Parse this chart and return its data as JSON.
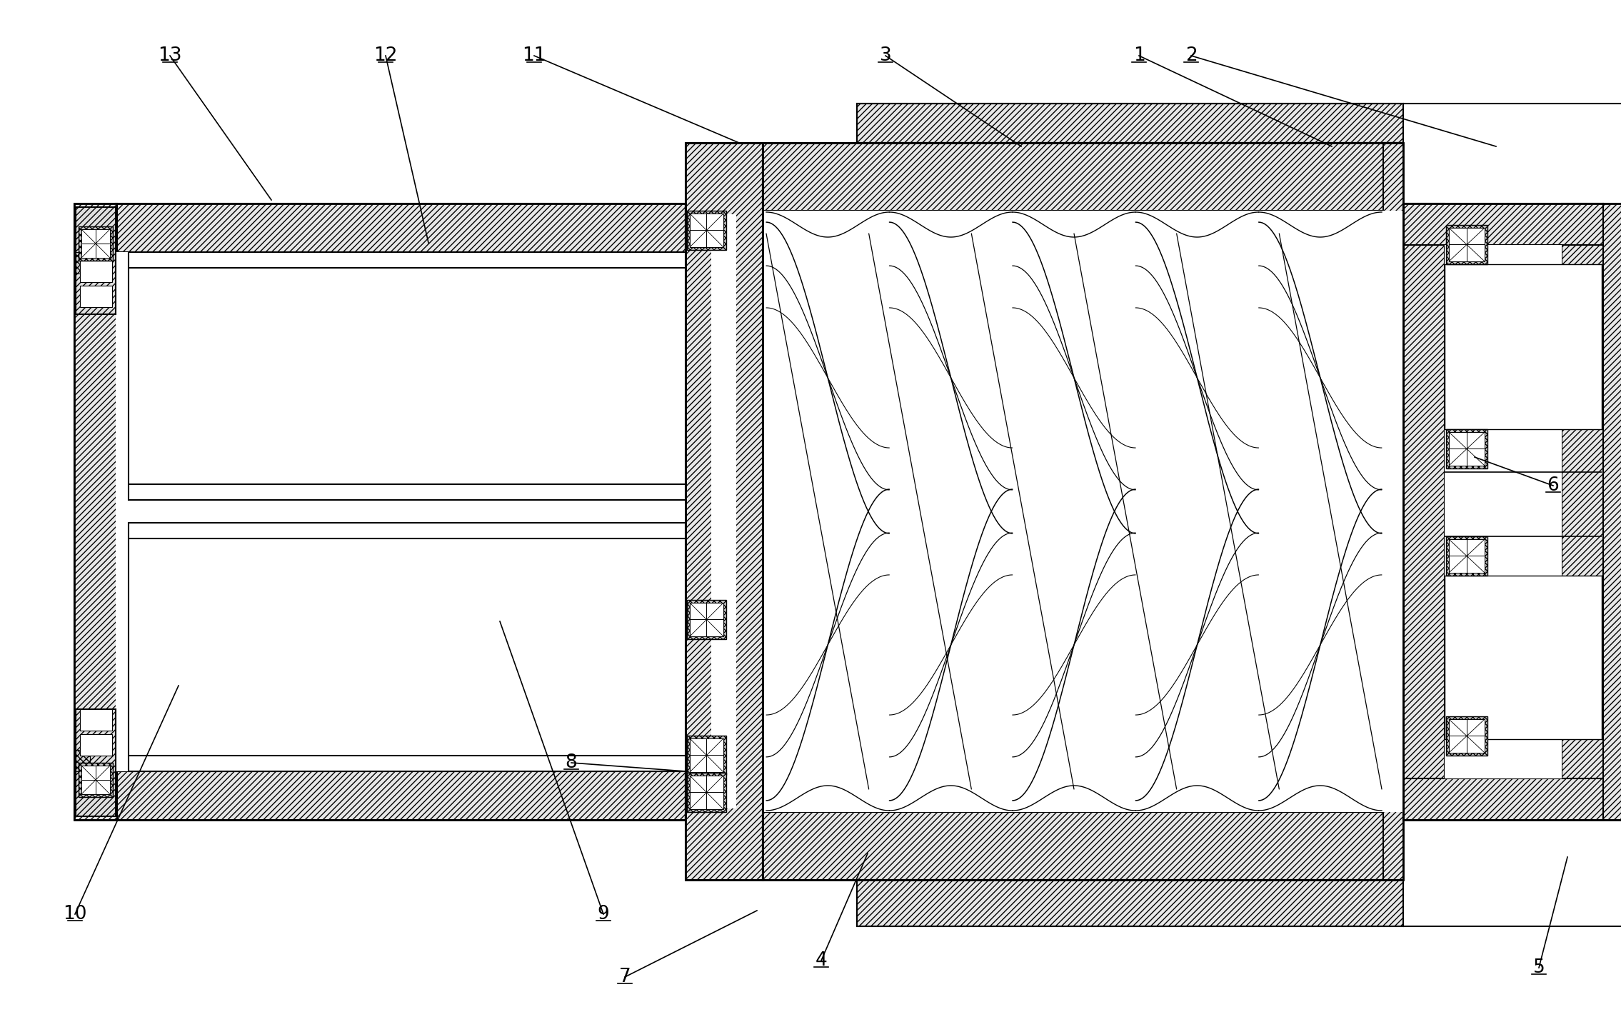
{
  "background_color": "#ffffff",
  "line_color": "#000000",
  "label_color": "#000000",
  "label_fontsize": 19,
  "fig_width": 22.7,
  "fig_height": 14.31,
  "annotations": [
    [
      "1",
      1865,
      205,
      1595,
      78
    ],
    [
      "2",
      2095,
      205,
      1668,
      78
    ],
    [
      "3",
      1430,
      205,
      1240,
      78
    ],
    [
      "4",
      1215,
      1195,
      1150,
      1345
    ],
    [
      "5",
      2195,
      1200,
      2155,
      1355
    ],
    [
      "6",
      2065,
      640,
      2175,
      680
    ],
    [
      "7",
      1060,
      1275,
      875,
      1368
    ],
    [
      "8",
      960,
      1080,
      800,
      1068
    ],
    [
      "9",
      700,
      870,
      845,
      1280
    ],
    [
      "10",
      250,
      960,
      105,
      1280
    ],
    [
      "11",
      1035,
      200,
      748,
      78
    ],
    [
      "12",
      600,
      340,
      540,
      78
    ],
    [
      "13",
      380,
      280,
      238,
      78
    ]
  ]
}
